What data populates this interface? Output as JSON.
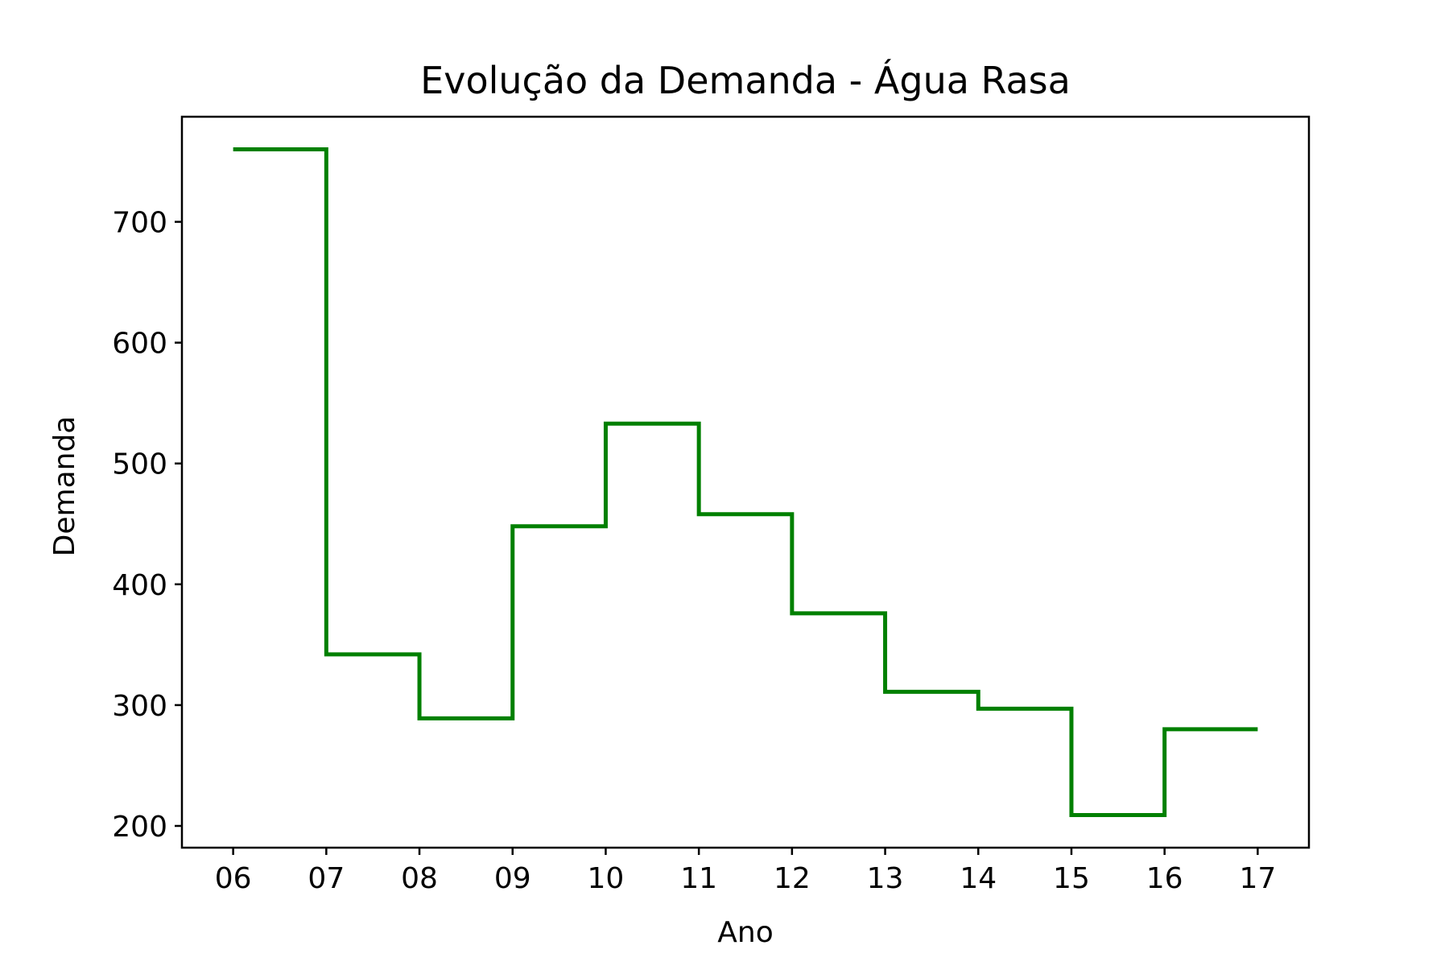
{
  "chart_data": {
    "type": "line",
    "drawstyle": "steps-post",
    "title": "Evolução da Demanda - Água Rasa",
    "xlabel": "Ano",
    "ylabel": "Demanda",
    "x": [
      "06",
      "07",
      "08",
      "09",
      "10",
      "11",
      "12",
      "13",
      "14",
      "15",
      "16",
      "17"
    ],
    "series": [
      {
        "color": "#008000",
        "values": [
          760,
          342,
          289,
          448,
          533,
          458,
          376,
          311,
          297,
          209,
          280,
          280
        ]
      }
    ],
    "yticks": [
      200,
      300,
      400,
      500,
      600,
      700
    ],
    "ylim": [
      182,
      787
    ],
    "xlim": [
      -0.55,
      11.55
    ],
    "grid": false,
    "legend": "none"
  }
}
